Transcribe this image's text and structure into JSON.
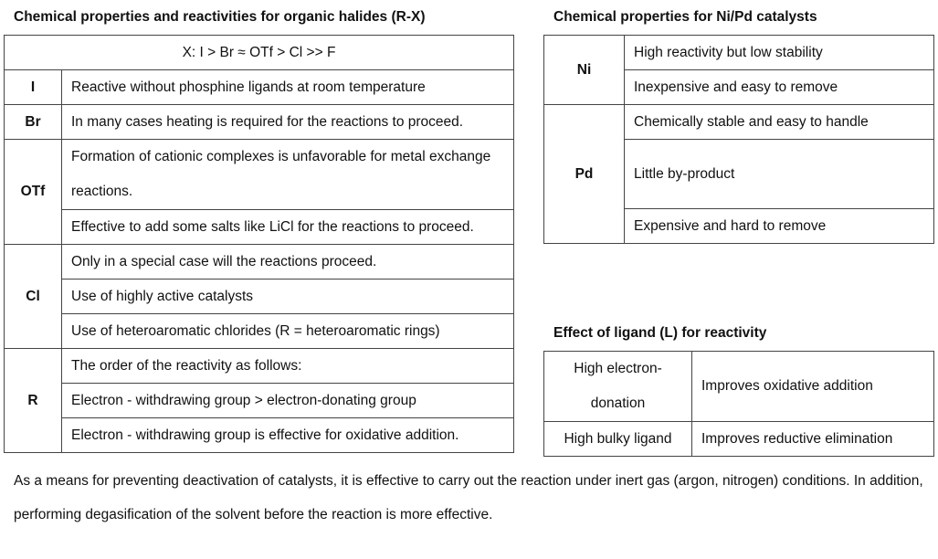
{
  "halides": {
    "title": "Chemical properties and reactivities for organic halides (R-X)",
    "order": "X:  I > Br ≈ OTf > Cl >> F",
    "rows": [
      {
        "key": "I",
        "items": [
          "Reactive without phosphine ligands at room temperature"
        ]
      },
      {
        "key": "Br",
        "items": [
          "In many cases heating is required for the reactions to proceed."
        ]
      },
      {
        "key": "OTf",
        "items": [
          "Formation of cationic complexes is unfavorable for metal exchange reactions.",
          "Effective to add some salts like LiCl for the reactions to proceed."
        ]
      },
      {
        "key": "Cl",
        "items": [
          "Only in a special case will the reactions proceed.",
          "Use of highly active catalysts",
          "Use of heteroaromatic chlorides (R = heteroaromatic rings)"
        ]
      },
      {
        "key": "R",
        "items": [
          "The order of the reactivity as follows:",
          "Electron - withdrawing group > electron-donating group",
          "Electron - withdrawing group is effective for oxidative addition."
        ]
      }
    ]
  },
  "catalysts": {
    "title": "Chemical properties for Ni/Pd catalysts",
    "rows": [
      {
        "key": "Ni",
        "items": [
          "High reactivity but low stability",
          "Inexpensive and easy to remove"
        ]
      },
      {
        "key": "Pd",
        "items": [
          "Chemically stable and easy to handle",
          "Little by-product",
          "Expensive and hard to remove"
        ]
      }
    ]
  },
  "ligand": {
    "title": "Effect of ligand (L) for reactivity",
    "rows": [
      {
        "key": "High electron-donation",
        "effect": "Improves oxidative addition"
      },
      {
        "key": "High bulky ligand",
        "effect": "Improves reductive elimination"
      }
    ]
  },
  "note": "As a means for preventing deactivation of catalysts, it is effective to carry out the reaction under inert gas (argon, nitrogen) conditions. In addition, performing degasification of the solvent before the reaction is more effective."
}
